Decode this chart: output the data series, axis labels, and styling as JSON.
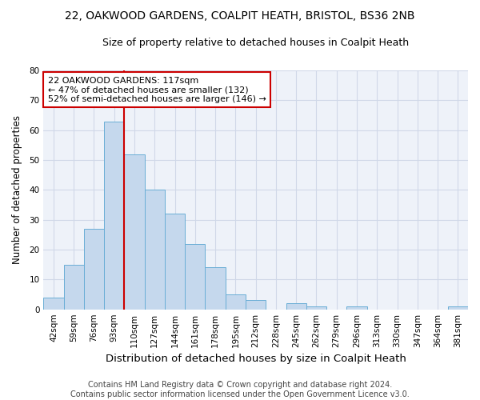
{
  "title_line1": "22, OAKWOOD GARDENS, COALPIT HEATH, BRISTOL, BS36 2NB",
  "title_line2": "Size of property relative to detached houses in Coalpit Heath",
  "xlabel": "Distribution of detached houses by size in Coalpit Heath",
  "ylabel": "Number of detached properties",
  "categories": [
    "42sqm",
    "59sqm",
    "76sqm",
    "93sqm",
    "110sqm",
    "127sqm",
    "144sqm",
    "161sqm",
    "178sqm",
    "195sqm",
    "212sqm",
    "228sqm",
    "245sqm",
    "262sqm",
    "279sqm",
    "296sqm",
    "313sqm",
    "330sqm",
    "347sqm",
    "364sqm",
    "381sqm"
  ],
  "values": [
    4,
    15,
    27,
    63,
    52,
    40,
    32,
    22,
    14,
    5,
    3,
    0,
    2,
    1,
    0,
    1,
    0,
    0,
    0,
    0,
    1
  ],
  "bar_color": "#c5d8ed",
  "bar_edge_color": "#6aaed6",
  "bar_width": 1.0,
  "vline_x": 3.5,
  "vline_color": "#cc0000",
  "annotation_text": "22 OAKWOOD GARDENS: 117sqm\n← 47% of detached houses are smaller (132)\n52% of semi-detached houses are larger (146) →",
  "annotation_box_color": "white",
  "annotation_box_edge": "#cc0000",
  "ylim": [
    0,
    80
  ],
  "yticks": [
    0,
    10,
    20,
    30,
    40,
    50,
    60,
    70,
    80
  ],
  "footer_line1": "Contains HM Land Registry data © Crown copyright and database right 2024.",
  "footer_line2": "Contains public sector information licensed under the Open Government Licence v3.0.",
  "bg_color": "#eef2f9",
  "grid_color": "#d0d8e8",
  "title1_fontsize": 10,
  "title2_fontsize": 9,
  "xlabel_fontsize": 9.5,
  "ylabel_fontsize": 8.5,
  "tick_fontsize": 7.5,
  "footer_fontsize": 7,
  "annotation_fontsize": 8
}
